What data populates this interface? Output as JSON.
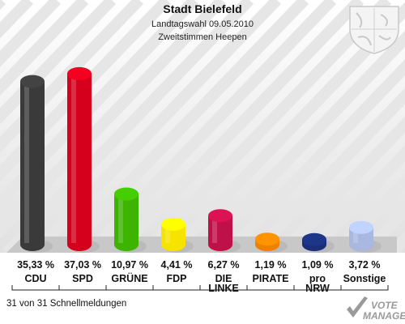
{
  "header": {
    "title": "Stadt Bielefeld",
    "subtitle": "Landtagswahl 09.05.2010",
    "subtitle2": "Zweitstimmen Heepen"
  },
  "footer": {
    "status": "31 von 31 Schnellmeldungen",
    "brand_line1": "VOTE",
    "brand_line2": "MANAGER"
  },
  "chart_data": {
    "type": "bar",
    "title": "Stadt Bielefeld",
    "subtitle": "Landtagswahl 09.05.2010 — Zweitstimmen Heepen",
    "categories": [
      [
        "CDU"
      ],
      [
        "SPD"
      ],
      [
        "GRÜNE"
      ],
      [
        "FDP"
      ],
      [
        "DIE",
        "LINKE"
      ],
      [
        "PIRATE"
      ],
      [
        "pro",
        "NRW"
      ],
      [
        "Sonstige"
      ]
    ],
    "value_labels": [
      "35,33 %",
      "37,03 %",
      "10,97 %",
      "4,41 %",
      "6,27 %",
      "1,19 %",
      "1,09 %",
      "3,72 %"
    ],
    "values": [
      35.33,
      37.03,
      10.97,
      4.41,
      6.27,
      1.19,
      1.09,
      3.72
    ],
    "colors": [
      "#3a3a3a",
      "#d4001c",
      "#3cb400",
      "#f6e400",
      "#c0104a",
      "#f08000",
      "#1a2f78",
      "#a8b8e0"
    ],
    "unit": "%",
    "ylim": [
      0,
      40
    ],
    "grid": false,
    "legend": "none"
  }
}
